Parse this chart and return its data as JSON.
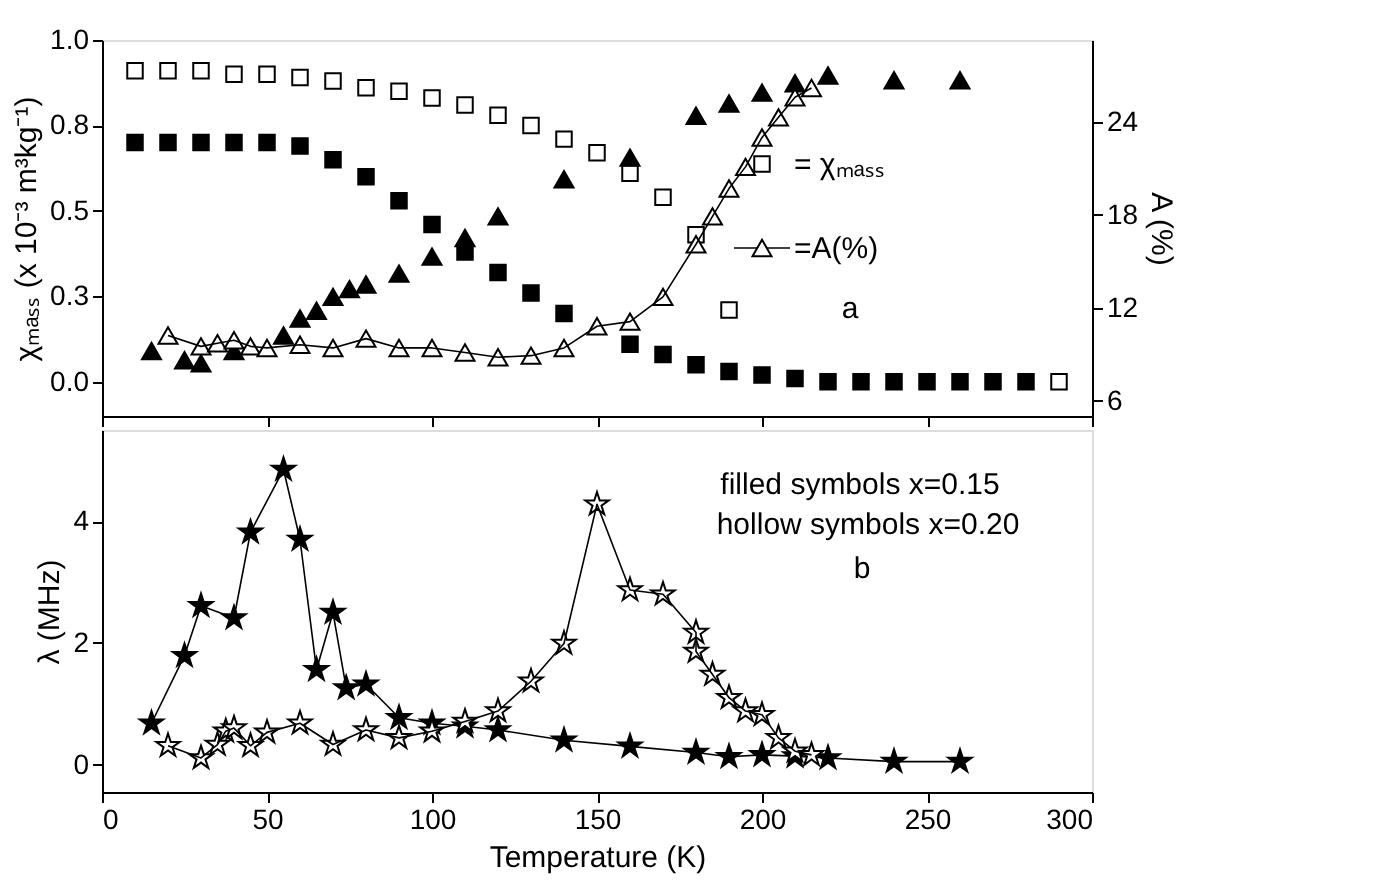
{
  "chart_data": [
    {
      "type": "scatter",
      "ylabel": "χₘₐₛₛ (x 10⁻³ m³kg⁻¹)",
      "y2label": "A (%)",
      "xlim": [
        0,
        300
      ],
      "xticks": [
        0,
        50,
        100,
        150,
        200,
        250,
        300
      ],
      "ylim": [
        -0.1,
        1.0
      ],
      "yticks": [
        {
          "value": 0,
          "label": "0.0"
        },
        {
          "value": 0.25,
          "label": "0.3"
        },
        {
          "value": 0.5,
          "label": "0.5"
        },
        {
          "value": 0.75,
          "label": "0.8"
        },
        {
          "value": 1,
          "label": "1.0"
        }
      ],
      "y2lim": [
        5,
        29.3
      ],
      "y2ticks": [
        6,
        12,
        18,
        24
      ],
      "tick_labels": "y",
      "legend": "right",
      "annotations": [
        "a"
      ],
      "series": [
        {
          "name": "= χₘₐₛₛ",
          "marker": "square",
          "color": "#ffffff",
          "x": [
            10,
            20,
            30,
            40,
            50,
            60,
            70,
            80,
            90,
            100,
            110,
            120,
            130,
            140,
            150,
            160,
            170,
            180,
            190,
            290
          ],
          "values": [
            0.91,
            0.91,
            0.91,
            0.9,
            0.9,
            0.89,
            0.88,
            0.86,
            0.85,
            0.83,
            0.81,
            0.78,
            0.75,
            0.71,
            0.67,
            0.61,
            0.54,
            0.43,
            0.21,
            0.0
          ]
        },
        {
          "marker": "square",
          "color": "#000000",
          "x": [
            10,
            20,
            30,
            40,
            50,
            60,
            70,
            80,
            90,
            100,
            110,
            120,
            130,
            140,
            160,
            170,
            180,
            190,
            200,
            210,
            220,
            230,
            240,
            250,
            260,
            270,
            280
          ],
          "values": [
            0.7,
            0.7,
            0.7,
            0.7,
            0.7,
            0.69,
            0.65,
            0.6,
            0.53,
            0.46,
            0.38,
            0.32,
            0.26,
            0.2,
            0.11,
            0.08,
            0.05,
            0.03,
            0.02,
            0.01,
            0.0,
            0.0,
            0.0,
            0.0,
            0.0,
            0.0,
            0.0
          ]
        },
        {
          "axis": "y2",
          "marker": "triangle",
          "color": "#000000",
          "x": [
            15,
            25,
            30,
            40,
            55,
            60,
            65,
            70,
            75,
            80,
            90,
            100,
            110,
            120,
            140,
            160,
            180,
            190,
            200,
            210,
            220,
            240,
            260
          ],
          "values": [
            9.2,
            8.6,
            8.4,
            9.2,
            10.2,
            11.3,
            11.8,
            12.7,
            13.2,
            13.5,
            14.2,
            15.3,
            16.5,
            17.9,
            20.3,
            21.7,
            24.4,
            25.2,
            25.9,
            26.5,
            27.0,
            26.7,
            26.7
          ]
        },
        {
          "name": "=A(%)",
          "type": "line",
          "axis": "y2",
          "marker": "triangle",
          "line_style": "solid",
          "color": "#ffffff",
          "x": [
            20,
            30,
            35,
            40,
            45,
            50,
            60,
            70,
            80,
            90,
            100,
            110,
            120,
            130,
            140,
            150,
            160,
            170,
            180,
            185,
            190,
            195,
            200,
            205,
            210,
            215
          ],
          "values": [
            10.2,
            9.5,
            9.7,
            9.9,
            9.5,
            9.4,
            9.6,
            9.4,
            10.0,
            9.4,
            9.4,
            9.1,
            8.8,
            8.9,
            9.4,
            10.8,
            11.1,
            12.7,
            16.1,
            17.9,
            19.7,
            21.1,
            23.0,
            24.3,
            25.6,
            26.2
          ]
        }
      ]
    },
    {
      "type": "line",
      "xlabel": "Temperature (K)",
      "ylabel": "λ (MHz)",
      "xlim": [
        0,
        300
      ],
      "xticks": [
        0,
        50,
        100,
        150,
        200,
        250,
        300
      ],
      "ylim": [
        -0.45,
        5.5
      ],
      "yticks": [
        0,
        2,
        4
      ],
      "annotations": [
        "filled symbols x=0.15",
        "hollow symbols x=0.20",
        "b"
      ],
      "series": [
        {
          "marker": "star",
          "line_style": "solid",
          "color": "#000000",
          "x": [
            15,
            25,
            30,
            40,
            45,
            55,
            60,
            65,
            70,
            74,
            80,
            90,
            100,
            110,
            120,
            140,
            160,
            180,
            190,
            200,
            210,
            220,
            240,
            260
          ],
          "values": [
            0.68,
            1.79,
            2.61,
            2.41,
            3.82,
            4.85,
            3.7,
            1.56,
            2.5,
            1.26,
            1.32,
            0.77,
            0.68,
            0.63,
            0.57,
            0.4,
            0.3,
            0.2,
            0.13,
            0.16,
            0.14,
            0.11,
            0.05,
            0.05
          ]
        },
        {
          "marker": "star",
          "line_style": "solid",
          "color": "#ffffff",
          "x": [
            20,
            30,
            35,
            37.5,
            40,
            45,
            50,
            60,
            70,
            80,
            90,
            100,
            110,
            120,
            130,
            140,
            150,
            160,
            170,
            180,
            180,
            185,
            190,
            195,
            200,
            205,
            210,
            215
          ],
          "values": [
            0.31,
            0.11,
            0.33,
            0.55,
            0.6,
            0.31,
            0.53,
            0.68,
            0.33,
            0.57,
            0.44,
            0.55,
            0.71,
            0.88,
            1.37,
            1.99,
            4.28,
            2.87,
            2.8,
            2.17,
            1.86,
            1.48,
            1.1,
            0.88,
            0.82,
            0.44,
            0.22,
            0.16
          ]
        }
      ]
    }
  ]
}
